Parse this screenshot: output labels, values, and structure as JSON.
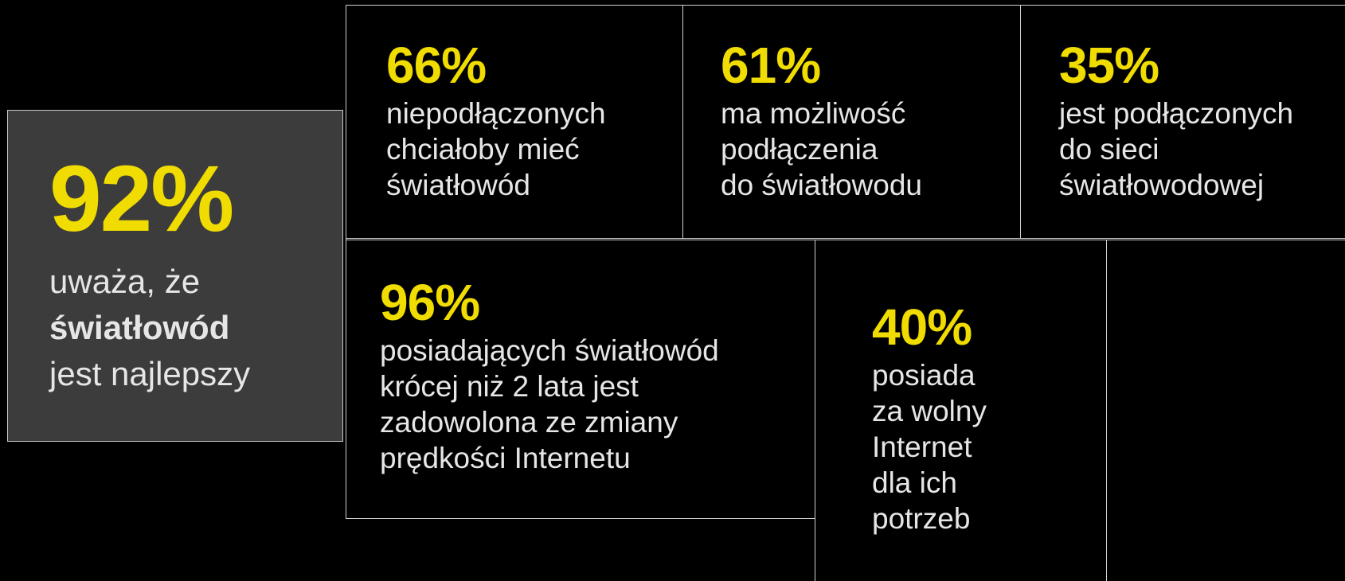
{
  "cards": [
    {
      "stat": "92%",
      "lines": [
        "uważa, że",
        "światłowód",
        "jest najlepszy"
      ]
    },
    {
      "stat": "66%",
      "lines": [
        "niepodłączonych",
        "chciałoby mieć",
        "światłowód"
      ]
    },
    {
      "stat": "61%",
      "lines": [
        "ma możliwość",
        "podłączenia",
        "do światłowodu"
      ]
    },
    {
      "stat": "35%",
      "lines": [
        "jest podłączonych",
        "do sieci",
        "światłowodowej"
      ]
    },
    {
      "stat": "96%",
      "lines": [
        "posiadających światłowód",
        "krócej niż 2 lata jest",
        "zadowolona ze zmiany",
        "prędkości Internetu"
      ]
    },
    {
      "stat": "40%",
      "lines": [
        "posiada",
        "za wolny",
        "Internet",
        "dla ich",
        "potrzeb"
      ]
    }
  ]
}
